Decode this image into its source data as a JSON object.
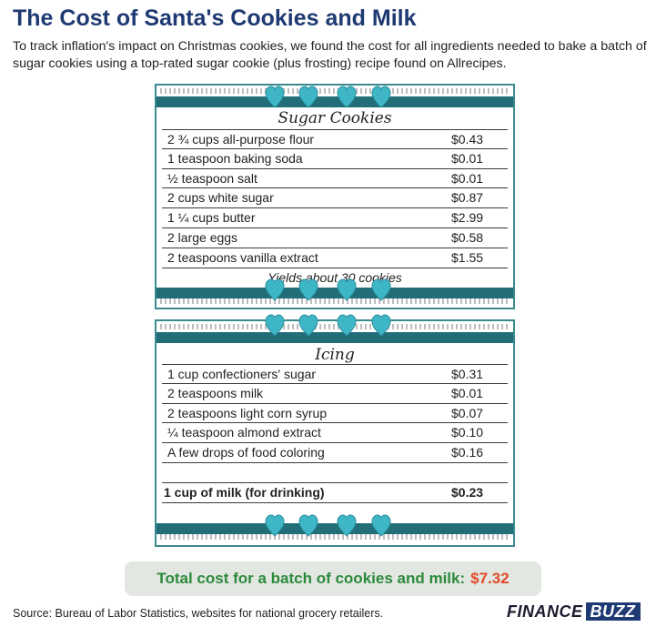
{
  "header": {
    "title": "The Cost of Santa's Cookies and Milk",
    "subtitle": "To track inflation's impact on Christmas cookies, we found the cost for all ingredients needed to bake a batch of sugar cookies using a top-rated sugar cookie (plus frosting) recipe found on Allrecipes."
  },
  "cookies": {
    "title": "Sugar Cookies",
    "items": [
      {
        "label": "2 ¾ cups all-purpose flour",
        "price": "$0.43"
      },
      {
        "label": "1 teaspoon baking soda",
        "price": "$0.01"
      },
      {
        "label": "½ teaspoon salt",
        "price": "$0.01"
      },
      {
        "label": "2 cups white sugar",
        "price": "$0.87"
      },
      {
        "label": "1 ¼ cups butter",
        "price": "$2.99"
      },
      {
        "label": "2 large eggs",
        "price": "$0.58"
      },
      {
        "label": "2 teaspoons vanilla extract",
        "price": "$1.55"
      }
    ],
    "yield": "Yields about 30 cookies"
  },
  "icing": {
    "title": "Icing",
    "items": [
      {
        "label": "1 cup confectioners' sugar",
        "price": "$0.31"
      },
      {
        "label": "2 teaspoons milk",
        "price": "$0.01"
      },
      {
        "label": "2 teaspoons light corn syrup",
        "price": "$0.07"
      },
      {
        "label": "¼ teaspoon almond extract",
        "price": "$0.10"
      },
      {
        "label": "A few drops of food coloring",
        "price": "$0.16"
      }
    ],
    "milk": {
      "label": "1 cup of milk (for drinking)",
      "price": "$0.23"
    }
  },
  "total": {
    "label": "Total cost for a batch of cookies and milk:",
    "amount": "$7.32"
  },
  "footer": {
    "source": "Source: Bureau of Labor Statistics, websites for national grocery retailers.",
    "logo_part1": "FINANCE",
    "logo_part2": "BUZZ"
  },
  "colors": {
    "title": "#1f3a73",
    "band": "#216d78",
    "heart": "#3fb6c6",
    "total_label": "#2c8a3b",
    "total_amount": "#e44a26"
  }
}
